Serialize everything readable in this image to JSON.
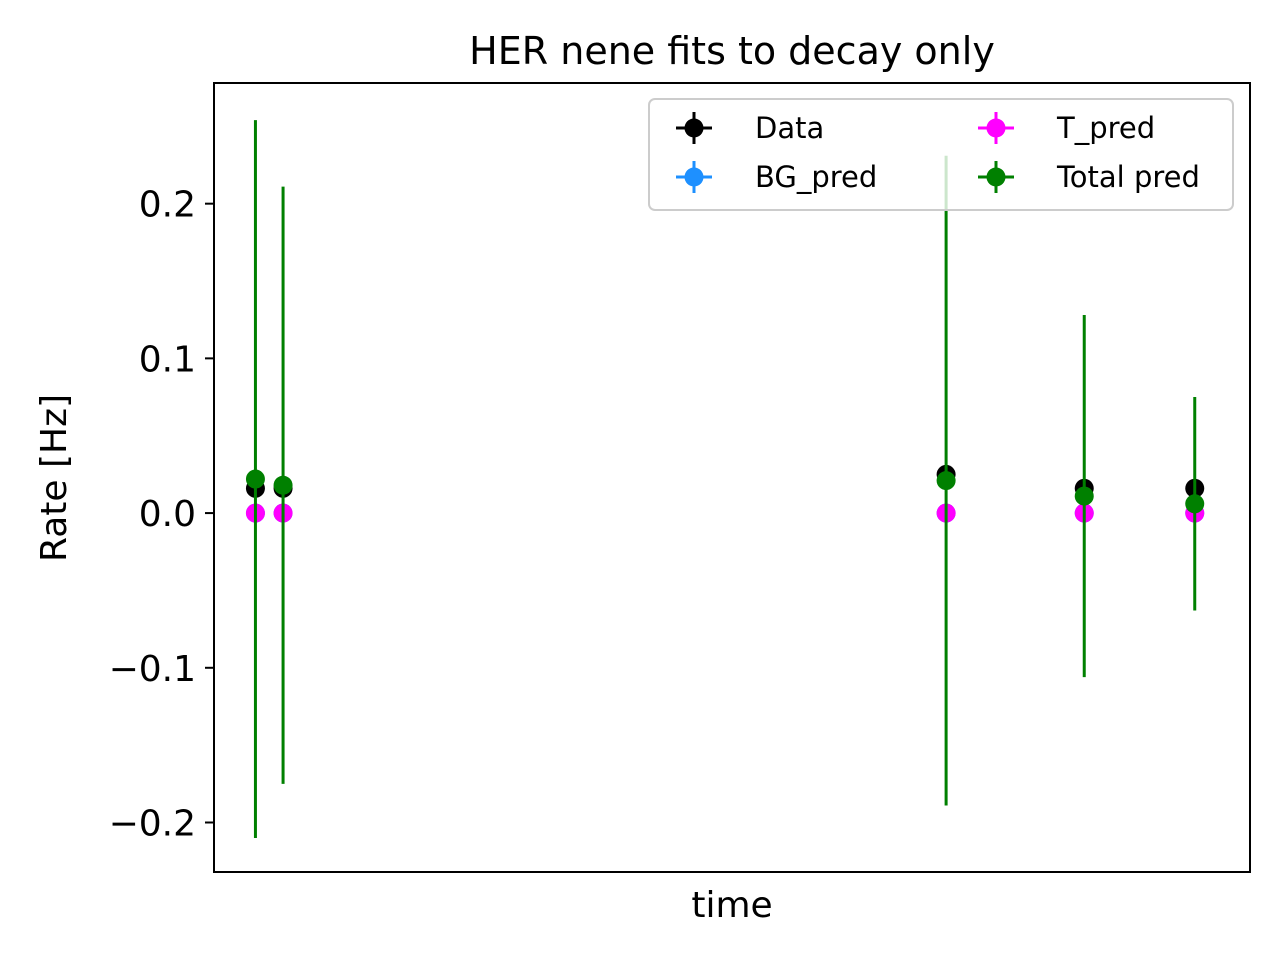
{
  "chart_data": {
    "type": "scatter",
    "title": "HER nene fits to decay only",
    "xlabel": "time",
    "ylabel": "Rate [Hz]",
    "xlim": [
      -0.15,
      3.6
    ],
    "ylim": [
      -0.232,
      0.278
    ],
    "xticks_visible": false,
    "yticks": [
      -0.2,
      -0.1,
      0.0,
      0.1,
      0.2
    ],
    "ytick_labels": [
      "−0.2",
      "−0.1",
      "0.0",
      "0.1",
      "0.2"
    ],
    "grid": false,
    "legend": {
      "placement": "upper right",
      "columns": 2,
      "order": [
        0,
        2,
        1,
        3
      ]
    },
    "x": [
      0.0,
      0.1,
      2.5,
      3.0,
      3.4
    ],
    "series": [
      {
        "name": "Data",
        "color": "#000000",
        "values": [
          0.016,
          0.016,
          0.025,
          0.016,
          0.016
        ],
        "errors": [
          0,
          0,
          0,
          0,
          0
        ]
      },
      {
        "name": "BG_pred",
        "color": "#1e90ff",
        "values": [
          0.0,
          0.0,
          0.0,
          0.0,
          0.0
        ],
        "errors": [
          0,
          0,
          0,
          0,
          0
        ]
      },
      {
        "name": "T_pred",
        "color": "#ff00ff",
        "values": [
          0.0,
          0.0,
          0.0,
          0.0,
          0.0
        ],
        "errors": [
          0,
          0,
          0,
          0,
          0
        ]
      },
      {
        "name": "Total pred",
        "color": "#008000",
        "values": [
          0.022,
          0.018,
          0.021,
          0.011,
          0.006
        ],
        "errors": [
          0.232,
          0.193,
          0.21,
          0.117,
          0.069
        ]
      }
    ]
  }
}
